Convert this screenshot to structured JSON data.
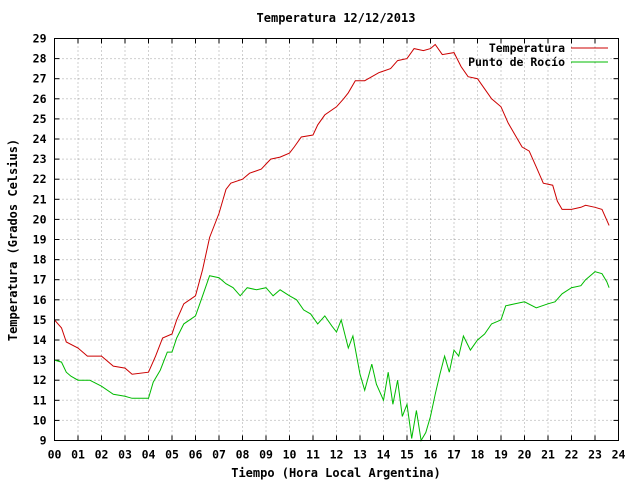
{
  "chart_data": {
    "type": "line",
    "title": "Temperatura 12/12/2013",
    "xlabel": "Tiempo (Hora Local Argentina)",
    "ylabel": "Temperatura (Grados Celsius)",
    "xlim": [
      0,
      24
    ],
    "ylim": [
      9,
      29
    ],
    "x_ticks": [
      "00",
      "01",
      "02",
      "03",
      "04",
      "05",
      "06",
      "07",
      "08",
      "09",
      "10",
      "11",
      "12",
      "13",
      "14",
      "15",
      "16",
      "17",
      "18",
      "19",
      "20",
      "21",
      "22",
      "23",
      "24"
    ],
    "y_ticks": [
      9,
      10,
      11,
      12,
      13,
      14,
      15,
      16,
      17,
      18,
      19,
      20,
      21,
      22,
      23,
      24,
      25,
      26,
      27,
      28,
      29
    ],
    "grid": true,
    "legend_position": "top-right",
    "series": [
      {
        "name": "Temperatura",
        "color": "#cc0000",
        "points": [
          [
            0.0,
            15.0
          ],
          [
            0.3,
            14.6
          ],
          [
            0.5,
            13.9
          ],
          [
            1.0,
            13.6
          ],
          [
            1.4,
            13.2
          ],
          [
            2.0,
            13.2
          ],
          [
            2.5,
            12.7
          ],
          [
            3.0,
            12.6
          ],
          [
            3.3,
            12.3
          ],
          [
            4.0,
            12.4
          ],
          [
            4.3,
            13.2
          ],
          [
            4.6,
            14.1
          ],
          [
            5.0,
            14.3
          ],
          [
            5.2,
            15.0
          ],
          [
            5.5,
            15.8
          ],
          [
            6.0,
            16.2
          ],
          [
            6.3,
            17.5
          ],
          [
            6.6,
            19.1
          ],
          [
            7.0,
            20.3
          ],
          [
            7.3,
            21.5
          ],
          [
            7.5,
            21.8
          ],
          [
            8.0,
            22.0
          ],
          [
            8.3,
            22.3
          ],
          [
            8.8,
            22.5
          ],
          [
            9.2,
            23.0
          ],
          [
            9.6,
            23.1
          ],
          [
            10.0,
            23.3
          ],
          [
            10.2,
            23.6
          ],
          [
            10.5,
            24.1
          ],
          [
            11.0,
            24.2
          ],
          [
            11.2,
            24.7
          ],
          [
            11.5,
            25.2
          ],
          [
            12.0,
            25.6
          ],
          [
            12.3,
            26.0
          ],
          [
            12.5,
            26.3
          ],
          [
            12.8,
            26.9
          ],
          [
            13.2,
            26.9
          ],
          [
            13.5,
            27.1
          ],
          [
            13.8,
            27.3
          ],
          [
            14.3,
            27.5
          ],
          [
            14.6,
            27.9
          ],
          [
            15.0,
            28.0
          ],
          [
            15.3,
            28.5
          ],
          [
            15.7,
            28.4
          ],
          [
            16.0,
            28.5
          ],
          [
            16.2,
            28.7
          ],
          [
            16.5,
            28.2
          ],
          [
            17.0,
            28.3
          ],
          [
            17.3,
            27.6
          ],
          [
            17.6,
            27.1
          ],
          [
            18.0,
            27.0
          ],
          [
            18.3,
            26.5
          ],
          [
            18.6,
            26.0
          ],
          [
            19.0,
            25.6
          ],
          [
            19.3,
            24.8
          ],
          [
            19.6,
            24.2
          ],
          [
            19.9,
            23.6
          ],
          [
            20.2,
            23.4
          ],
          [
            20.5,
            22.6
          ],
          [
            20.8,
            21.8
          ],
          [
            21.2,
            21.7
          ],
          [
            21.4,
            20.9
          ],
          [
            21.6,
            20.5
          ],
          [
            22.0,
            20.5
          ],
          [
            22.4,
            20.6
          ],
          [
            22.6,
            20.7
          ],
          [
            23.0,
            20.6
          ],
          [
            23.3,
            20.5
          ],
          [
            23.6,
            19.7
          ]
        ]
      },
      {
        "name": "Punto de Rocío",
        "color": "#00bb00",
        "points": [
          [
            0.0,
            13.0
          ],
          [
            0.3,
            12.9
          ],
          [
            0.5,
            12.4
          ],
          [
            0.7,
            12.2
          ],
          [
            1.0,
            12.0
          ],
          [
            1.5,
            12.0
          ],
          [
            2.0,
            11.7
          ],
          [
            2.5,
            11.3
          ],
          [
            3.0,
            11.2
          ],
          [
            3.3,
            11.1
          ],
          [
            4.0,
            11.1
          ],
          [
            4.2,
            11.9
          ],
          [
            4.5,
            12.5
          ],
          [
            4.8,
            13.4
          ],
          [
            5.0,
            13.4
          ],
          [
            5.2,
            14.1
          ],
          [
            5.5,
            14.8
          ],
          [
            6.0,
            15.2
          ],
          [
            6.3,
            16.2
          ],
          [
            6.6,
            17.2
          ],
          [
            7.0,
            17.1
          ],
          [
            7.3,
            16.8
          ],
          [
            7.6,
            16.6
          ],
          [
            7.9,
            16.2
          ],
          [
            8.2,
            16.6
          ],
          [
            8.6,
            16.5
          ],
          [
            9.0,
            16.6
          ],
          [
            9.3,
            16.2
          ],
          [
            9.6,
            16.5
          ],
          [
            10.0,
            16.2
          ],
          [
            10.3,
            16.0
          ],
          [
            10.6,
            15.5
          ],
          [
            10.9,
            15.3
          ],
          [
            11.2,
            14.8
          ],
          [
            11.5,
            15.2
          ],
          [
            11.8,
            14.7
          ],
          [
            12.0,
            14.4
          ],
          [
            12.2,
            15.0
          ],
          [
            12.5,
            13.6
          ],
          [
            12.7,
            14.2
          ],
          [
            13.0,
            12.3
          ],
          [
            13.2,
            11.5
          ],
          [
            13.5,
            12.8
          ],
          [
            13.7,
            11.8
          ],
          [
            14.0,
            11.0
          ],
          [
            14.2,
            12.4
          ],
          [
            14.4,
            10.8
          ],
          [
            14.6,
            12.0
          ],
          [
            14.8,
            10.2
          ],
          [
            15.0,
            10.8
          ],
          [
            15.2,
            9.1
          ],
          [
            15.4,
            10.5
          ],
          [
            15.6,
            9.0
          ],
          [
            15.8,
            9.4
          ],
          [
            16.0,
            10.2
          ],
          [
            16.2,
            11.3
          ],
          [
            16.4,
            12.3
          ],
          [
            16.6,
            13.2
          ],
          [
            16.8,
            12.4
          ],
          [
            17.0,
            13.5
          ],
          [
            17.2,
            13.2
          ],
          [
            17.4,
            14.2
          ],
          [
            17.7,
            13.5
          ],
          [
            18.0,
            14.0
          ],
          [
            18.3,
            14.3
          ],
          [
            18.6,
            14.8
          ],
          [
            19.0,
            15.0
          ],
          [
            19.2,
            15.7
          ],
          [
            19.6,
            15.8
          ],
          [
            20.0,
            15.9
          ],
          [
            20.5,
            15.6
          ],
          [
            21.0,
            15.8
          ],
          [
            21.3,
            15.9
          ],
          [
            21.6,
            16.3
          ],
          [
            22.0,
            16.6
          ],
          [
            22.4,
            16.7
          ],
          [
            22.6,
            17.0
          ],
          [
            22.8,
            17.2
          ],
          [
            23.0,
            17.4
          ],
          [
            23.3,
            17.3
          ],
          [
            23.5,
            16.9
          ],
          [
            23.6,
            16.6
          ]
        ]
      }
    ]
  }
}
